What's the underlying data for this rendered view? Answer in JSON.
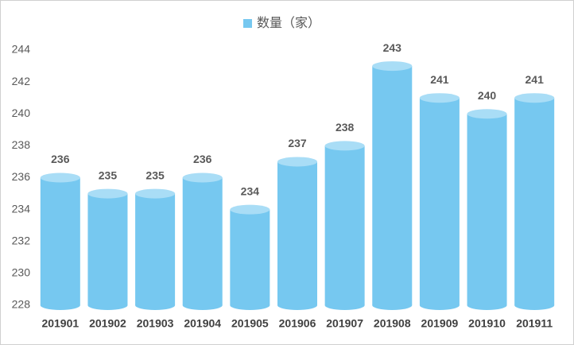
{
  "chart_data": {
    "type": "bar",
    "legend": "数量（家）",
    "categories": [
      "201901",
      "201902",
      "201903",
      "201904",
      "201905",
      "201906",
      "201907",
      "201908",
      "201909",
      "201910",
      "201911"
    ],
    "values": [
      236,
      235,
      235,
      236,
      234,
      237,
      238,
      243,
      241,
      240,
      241
    ],
    "color": "#76c8f0",
    "ylim": [
      228,
      244
    ],
    "yticks": [
      228,
      230,
      232,
      234,
      236,
      238,
      240,
      242,
      244
    ],
    "grid": false
  }
}
